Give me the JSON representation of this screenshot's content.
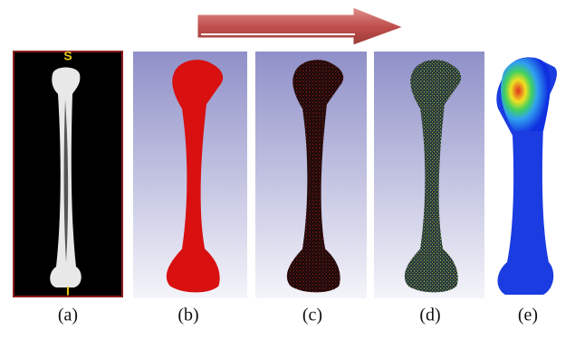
{
  "ct_markers": {
    "top": "S",
    "bottom": "I"
  },
  "panels": [
    {
      "label": "(a)"
    },
    {
      "label": "(b)"
    },
    {
      "label": "(c)"
    },
    {
      "label": "(d)"
    },
    {
      "label": "(e)"
    }
  ]
}
